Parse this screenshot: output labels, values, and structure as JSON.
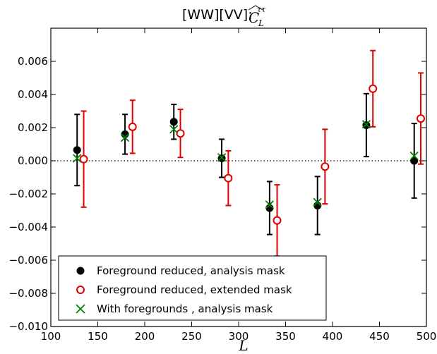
{
  "chart_data": {
    "type": "scatter",
    "title": "[WW][VV]:",
    "title_math": "C_L^{ττ} (hat)",
    "xlabel": "L",
    "ylabel": "",
    "xlim": [
      100,
      500
    ],
    "ylim": [
      -0.01,
      0.008
    ],
    "xticks": [
      "100",
      "150",
      "200",
      "250",
      "300",
      "350",
      "400",
      "450",
      "500"
    ],
    "yticks": [
      "−0.010",
      "−0.008",
      "−0.006",
      "−0.004",
      "−0.002",
      "0.000",
      "0.002",
      "0.004",
      "0.006"
    ],
    "xtick_values": [
      100,
      150,
      200,
      250,
      300,
      350,
      400,
      450,
      500
    ],
    "ytick_values": [
      -0.01,
      -0.008,
      -0.006,
      -0.004,
      -0.002,
      0.0,
      0.002,
      0.004,
      0.006
    ],
    "reference_line": {
      "y": 0.0,
      "style": "dotted"
    },
    "legend_position": "lower-left",
    "series": [
      {
        "name": "Foreground reduced, analysis mask",
        "marker": "filled-circle",
        "color": "#000000",
        "x": [
          128,
          179,
          231,
          282,
          333,
          384,
          436,
          487
        ],
        "y": [
          0.00065,
          0.0016,
          0.00235,
          0.00015,
          -0.00285,
          -0.0027,
          0.00215,
          0.0
        ],
        "yerr": [
          0.00215,
          0.0012,
          0.00105,
          0.00115,
          0.0016,
          0.00175,
          0.0019,
          0.00225
        ]
      },
      {
        "name": "Foreground reduced, extended mask",
        "marker": "open-circle",
        "color": "#e00000",
        "x": [
          135,
          187,
          238,
          289,
          341,
          392,
          443,
          494
        ],
        "y": [
          0.0001,
          0.00205,
          0.00165,
          -0.00105,
          -0.0036,
          -0.00035,
          0.00435,
          0.00255
        ],
        "yerr": [
          0.0029,
          0.0016,
          0.00145,
          0.00165,
          0.00215,
          0.00225,
          0.0023,
          0.00275
        ]
      },
      {
        "name": "With foregrounds , analysis mask",
        "marker": "x",
        "color": "#008000",
        "x": [
          128,
          179,
          231,
          282,
          333,
          384,
          436,
          487
        ],
        "y": [
          0.00015,
          0.0014,
          0.0019,
          0.0002,
          -0.00265,
          -0.0025,
          0.0022,
          0.0003
        ],
        "yerr": null
      }
    ]
  }
}
